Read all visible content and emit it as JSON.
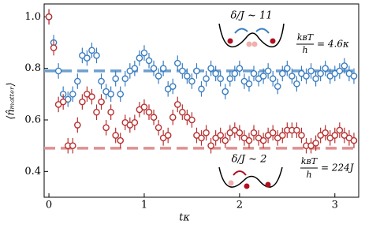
{
  "chart_data": {
    "type": "errorbar-scatter",
    "x_label": "tκ",
    "y_label": "⟨n̂ₘₐₜₜₑᵣ⟩",
    "x": [
      0,
      0.05,
      0.1,
      0.15,
      0.2,
      0.25,
      0.3,
      0.35,
      0.4,
      0.45,
      0.5,
      0.55,
      0.6,
      0.65,
      0.7,
      0.75,
      0.8,
      0.85,
      0.9,
      0.95,
      1.0,
      1.05,
      1.1,
      1.15,
      1.2,
      1.25,
      1.3,
      1.35,
      1.4,
      1.45,
      1.5,
      1.55,
      1.6,
      1.65,
      1.7,
      1.75,
      1.8,
      1.85,
      1.9,
      1.95,
      2.0,
      2.05,
      2.1,
      2.15,
      2.2,
      2.25,
      2.3,
      2.35,
      2.4,
      2.45,
      2.5,
      2.55,
      2.6,
      2.65,
      2.7,
      2.75,
      2.8,
      2.85,
      2.9,
      2.95,
      3.0,
      3.05,
      3.1,
      3.15,
      3.2
    ],
    "series": [
      {
        "color": "#3a7dc0",
        "error": 0.03,
        "values": [
          1.0,
          0.9,
          0.79,
          0.7,
          0.68,
          0.7,
          0.75,
          0.85,
          0.84,
          0.87,
          0.85,
          0.75,
          0.71,
          0.7,
          0.76,
          0.7,
          0.76,
          0.79,
          0.8,
          0.84,
          0.86,
          0.83,
          0.8,
          0.77,
          0.8,
          0.72,
          0.73,
          0.82,
          0.79,
          0.77,
          0.75,
          0.79,
          0.72,
          0.76,
          0.8,
          0.78,
          0.76,
          0.71,
          0.76,
          0.78,
          0.8,
          0.75,
          0.74,
          0.78,
          0.76,
          0.77,
          0.79,
          0.76,
          0.73,
          0.78,
          0.8,
          0.77,
          0.74,
          0.78,
          0.77,
          0.79,
          0.76,
          0.78,
          0.8,
          0.77,
          0.78,
          0.79,
          0.81,
          0.78,
          0.77
        ]
      },
      {
        "color": "#b83030",
        "error": 0.03,
        "values": [
          1.0,
          0.88,
          0.66,
          0.67,
          0.5,
          0.5,
          0.58,
          0.67,
          0.7,
          0.69,
          0.63,
          0.67,
          0.57,
          0.63,
          0.54,
          0.52,
          0.59,
          0.58,
          0.59,
          0.64,
          0.65,
          0.63,
          0.61,
          0.57,
          0.53,
          0.54,
          0.61,
          0.66,
          0.63,
          0.61,
          0.6,
          0.54,
          0.53,
          0.55,
          0.5,
          0.53,
          0.54,
          0.52,
          0.55,
          0.56,
          0.55,
          0.53,
          0.52,
          0.55,
          0.53,
          0.52,
          0.54,
          0.55,
          0.53,
          0.54,
          0.56,
          0.56,
          0.56,
          0.54,
          0.5,
          0.5,
          0.51,
          0.54,
          0.55,
          0.53,
          0.54,
          0.56,
          0.54,
          0.53,
          0.52
        ]
      }
    ],
    "hlines": [
      {
        "value": 0.79,
        "color": "#6c9fcf"
      },
      {
        "value": 0.49,
        "color": "#df9090"
      }
    ],
    "xlim": [
      -0.05,
      3.25
    ],
    "ylim": [
      0.3,
      1.05
    ],
    "xticks": [
      0,
      1,
      2,
      3
    ],
    "yticks": [
      0.4,
      0.6,
      0.8,
      {
        "value": 1,
        "label": "1.0"
      }
    ],
    "annotations": {
      "top_ratio": "δ/J ~ 11",
      "top_temp_num": "kʙT",
      "top_temp_den": "h",
      "top_temp_val": "= 4.6κ",
      "bottom_ratio": "δ/J ~ 2",
      "bottom_temp_num": "kʙT",
      "bottom_temp_den": "h",
      "bottom_temp_val": "= 224J"
    }
  }
}
